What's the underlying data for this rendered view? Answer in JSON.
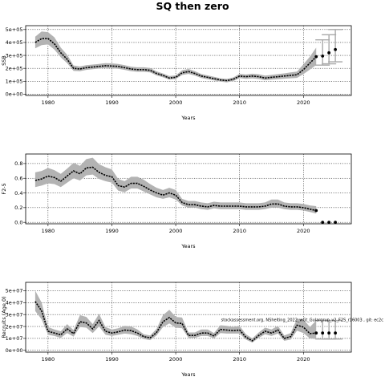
{
  "figure": {
    "title": "SQ then zero",
    "annotation": "stockassessment.org, NShelting_2022_wGt_Gulargrup_v2_F2S_r16003 , git: ec2c"
  },
  "chart_data": [
    {
      "type": "area",
      "name": "panel-ssb",
      "xlabel": "Years",
      "ylabel": "SSB",
      "xlim": [
        1976.5,
        2027.5
      ],
      "ylim": [
        -10000,
        530000
      ],
      "xticks": [
        1980,
        1990,
        2000,
        2010,
        2020
      ],
      "xtick_labels": [
        "1980",
        "1990",
        "2000",
        "2010",
        "2020"
      ],
      "yticks": [
        0,
        100000,
        200000,
        300000,
        400000,
        500000
      ],
      "ytick_labels": [
        "0e+00",
        "1e+05",
        "2e+05",
        "3e+05",
        "4e+05",
        "5e+05"
      ],
      "grid": true,
      "x": [
        1978,
        1979,
        1980,
        1981,
        1982,
        1983,
        1984,
        1985,
        1986,
        1987,
        1988,
        1989,
        1990,
        1991,
        1992,
        1993,
        1994,
        1995,
        1996,
        1997,
        1998,
        1999,
        2000,
        2001,
        2002,
        2003,
        2004,
        2005,
        2006,
        2007,
        2008,
        2009,
        2010,
        2011,
        2012,
        2013,
        2014,
        2015,
        2016,
        2017,
        2018,
        2019,
        2020,
        2021,
        2022
      ],
      "estimate": [
        400000,
        430000,
        430000,
        390000,
        320000,
        270000,
        200000,
        195000,
        205000,
        210000,
        215000,
        220000,
        218000,
        215000,
        205000,
        195000,
        190000,
        190000,
        185000,
        160000,
        145000,
        125000,
        130000,
        165000,
        175000,
        160000,
        140000,
        130000,
        120000,
        110000,
        105000,
        115000,
        140000,
        135000,
        140000,
        135000,
        125000,
        130000,
        135000,
        140000,
        145000,
        150000,
        190000,
        240000,
        290000
      ],
      "lower": [
        355000,
        380000,
        385000,
        345000,
        285000,
        240000,
        180000,
        178000,
        188000,
        193000,
        198000,
        202000,
        200000,
        197000,
        188000,
        178000,
        173000,
        173000,
        168000,
        145000,
        130000,
        112000,
        117000,
        148000,
        157000,
        143000,
        125000,
        116000,
        106000,
        97000,
        92000,
        101000,
        124000,
        118000,
        122000,
        117000,
        108000,
        112000,
        116000,
        120000,
        123000,
        126000,
        155000,
        190000,
        225000
      ],
      "upper": [
        445000,
        485000,
        480000,
        440000,
        360000,
        305000,
        222000,
        214000,
        224000,
        229000,
        234000,
        240000,
        238000,
        234000,
        224000,
        213000,
        208000,
        208000,
        203000,
        176000,
        160000,
        140000,
        145000,
        185000,
        195000,
        178000,
        156000,
        145000,
        134000,
        123000,
        118000,
        129000,
        157000,
        152000,
        158000,
        154000,
        143000,
        149000,
        155000,
        161000,
        168000,
        175000,
        230000,
        290000,
        360000
      ],
      "forecast": {
        "x": [
          2023,
          2024,
          2025
        ],
        "median": [
          295000,
          320000,
          345000
        ],
        "lower": [
          225000,
          235000,
          250000
        ],
        "upper": [
          420000,
          460000,
          500000
        ]
      }
    },
    {
      "type": "area",
      "name": "panel-f",
      "xlabel": "Years",
      "ylabel": "F2-5",
      "xlim": [
        1976.5,
        2027.5
      ],
      "ylim": [
        -0.02,
        0.93
      ],
      "xticks": [
        1980,
        1990,
        2000,
        2010,
        2020
      ],
      "xtick_labels": [
        "1980",
        "1990",
        "2000",
        "2010",
        "2020"
      ],
      "yticks": [
        0.0,
        0.2,
        0.4,
        0.6,
        0.8
      ],
      "ytick_labels": [
        "0.0",
        "0.2",
        "0.4",
        "0.6",
        "0.8"
      ],
      "grid": true,
      "x": [
        1978,
        1979,
        1980,
        1981,
        1982,
        1983,
        1984,
        1985,
        1986,
        1987,
        1988,
        1989,
        1990,
        1991,
        1992,
        1993,
        1994,
        1995,
        1996,
        1997,
        1998,
        1999,
        2000,
        2001,
        2002,
        2003,
        2004,
        2005,
        2006,
        2007,
        2008,
        2009,
        2010,
        2011,
        2012,
        2013,
        2014,
        2015,
        2016,
        2017,
        2018,
        2019,
        2020,
        2021,
        2022
      ],
      "estimate": [
        0.57,
        0.59,
        0.63,
        0.61,
        0.56,
        0.63,
        0.7,
        0.66,
        0.74,
        0.75,
        0.68,
        0.64,
        0.62,
        0.5,
        0.48,
        0.53,
        0.53,
        0.49,
        0.44,
        0.4,
        0.37,
        0.4,
        0.37,
        0.27,
        0.24,
        0.24,
        0.22,
        0.21,
        0.23,
        0.22,
        0.22,
        0.22,
        0.22,
        0.21,
        0.21,
        0.21,
        0.22,
        0.25,
        0.25,
        0.22,
        0.21,
        0.21,
        0.2,
        0.18,
        0.16
      ],
      "lower": [
        0.48,
        0.5,
        0.53,
        0.52,
        0.48,
        0.54,
        0.6,
        0.57,
        0.64,
        0.65,
        0.59,
        0.56,
        0.54,
        0.43,
        0.41,
        0.46,
        0.46,
        0.42,
        0.38,
        0.34,
        0.32,
        0.34,
        0.31,
        0.23,
        0.2,
        0.2,
        0.18,
        0.17,
        0.19,
        0.18,
        0.18,
        0.18,
        0.18,
        0.17,
        0.17,
        0.17,
        0.18,
        0.2,
        0.2,
        0.18,
        0.17,
        0.17,
        0.16,
        0.14,
        0.12
      ],
      "upper": [
        0.68,
        0.7,
        0.74,
        0.71,
        0.66,
        0.73,
        0.81,
        0.77,
        0.86,
        0.88,
        0.79,
        0.75,
        0.72,
        0.59,
        0.56,
        0.62,
        0.62,
        0.58,
        0.52,
        0.47,
        0.44,
        0.47,
        0.44,
        0.32,
        0.29,
        0.29,
        0.27,
        0.26,
        0.28,
        0.27,
        0.27,
        0.27,
        0.27,
        0.26,
        0.26,
        0.26,
        0.27,
        0.31,
        0.31,
        0.27,
        0.26,
        0.26,
        0.25,
        0.23,
        0.22
      ],
      "forecast": {
        "x": [
          2023,
          2024,
          2025
        ],
        "median": [
          0.0,
          0.0,
          0.0
        ],
        "lower": [],
        "upper": []
      }
    },
    {
      "type": "area",
      "name": "panel-recruits",
      "xlabel": "Years",
      "ylabel": "Recruits (Age 0)",
      "xlim": [
        1976.5,
        2027.5
      ],
      "ylim": [
        -1500000,
        57000000
      ],
      "xticks": [
        1980,
        1990,
        2000,
        2010,
        2020
      ],
      "xtick_labels": [
        "1980",
        "1990",
        "2000",
        "2010",
        "2020"
      ],
      "yticks": [
        0,
        10000000,
        20000000,
        30000000,
        40000000,
        50000000
      ],
      "ytick_labels": [
        "0e+00",
        "1e+07",
        "2e+07",
        "3e+07",
        "4e+07",
        "5e+07"
      ],
      "grid": true,
      "x": [
        1978,
        1979,
        1980,
        1981,
        1982,
        1983,
        1984,
        1985,
        1986,
        1987,
        1988,
        1989,
        1990,
        1991,
        1992,
        1993,
        1994,
        1995,
        1996,
        1997,
        1998,
        1999,
        2000,
        2001,
        2002,
        2003,
        2004,
        2005,
        2006,
        2007,
        2008,
        2009,
        2010,
        2011,
        2012,
        2013,
        2014,
        2015,
        2016,
        2017,
        2018,
        2019,
        2020,
        2021,
        2022
      ],
      "estimate": [
        41000000,
        33000000,
        16000000,
        14500000,
        13000000,
        18000000,
        14000000,
        24000000,
        23000000,
        18000000,
        25000000,
        16000000,
        14500000,
        15500000,
        17000000,
        16500000,
        14500000,
        11500000,
        10500000,
        15000000,
        24000000,
        27500000,
        23000000,
        22500000,
        12500000,
        12500000,
        14500000,
        14500000,
        12000000,
        17500000,
        17000000,
        16500000,
        17000000,
        11000000,
        8000000,
        12500000,
        16000000,
        14500000,
        17000000,
        10000000,
        11500000,
        21000000,
        19500000,
        14000000,
        14500000
      ],
      "lower": [
        33000000,
        26000000,
        13000000,
        12000000,
        10500000,
        14500000,
        11500000,
        19500000,
        19000000,
        14500000,
        20000000,
        13000000,
        12000000,
        13000000,
        14000000,
        13500000,
        12000000,
        9500000,
        8500000,
        12500000,
        19500000,
        22500000,
        19000000,
        18500000,
        10500000,
        10500000,
        12000000,
        12000000,
        10000000,
        14500000,
        14000000,
        14000000,
        14000000,
        9000000,
        6500000,
        10500000,
        13500000,
        12000000,
        14000000,
        8000000,
        9000000,
        16500000,
        14500000,
        10000000,
        9500000
      ],
      "upper": [
        50000000,
        40000000,
        19500000,
        17500000,
        16000000,
        22000000,
        17000000,
        29500000,
        28000000,
        22000000,
        30500000,
        19500000,
        17500000,
        18500000,
        20500000,
        20000000,
        17500000,
        13500000,
        12500000,
        18000000,
        29500000,
        34000000,
        28000000,
        27500000,
        15000000,
        15000000,
        17500000,
        17500000,
        14500000,
        21000000,
        20500000,
        19500000,
        20500000,
        13500000,
        10000000,
        15000000,
        19000000,
        17500000,
        20500000,
        12500000,
        14500000,
        26500000,
        26000000,
        19500000,
        25000000
      ],
      "forecast": {
        "x": [
          2023,
          2024,
          2025
        ],
        "median": [
          14500000,
          14500000,
          14500000
        ],
        "lower": [
          9500000,
          9500000,
          9500000
        ],
        "upper": [
          25000000,
          25000000,
          25000000
        ]
      }
    }
  ]
}
